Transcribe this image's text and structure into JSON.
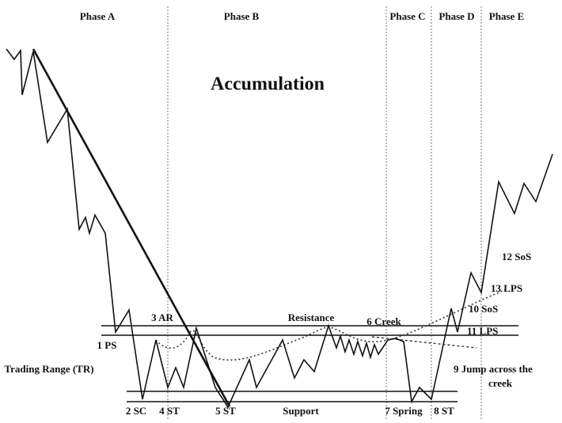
{
  "title": "Accumulation",
  "phases": [
    "Phase A",
    "Phase B",
    "Phase C",
    "Phase D",
    "Phase E"
  ],
  "labels": [
    "3 AR",
    "Resistance",
    "6 Creek",
    "1 PS",
    "Trading Range (TR)",
    "2 SC",
    "4 ST",
    "5 ST",
    "Support",
    "7 Spring",
    "8 ST",
    "9 Jump across the",
    "creek",
    "11 LPS",
    "10 SoS",
    "13 LPS",
    "12 SoS"
  ]
}
